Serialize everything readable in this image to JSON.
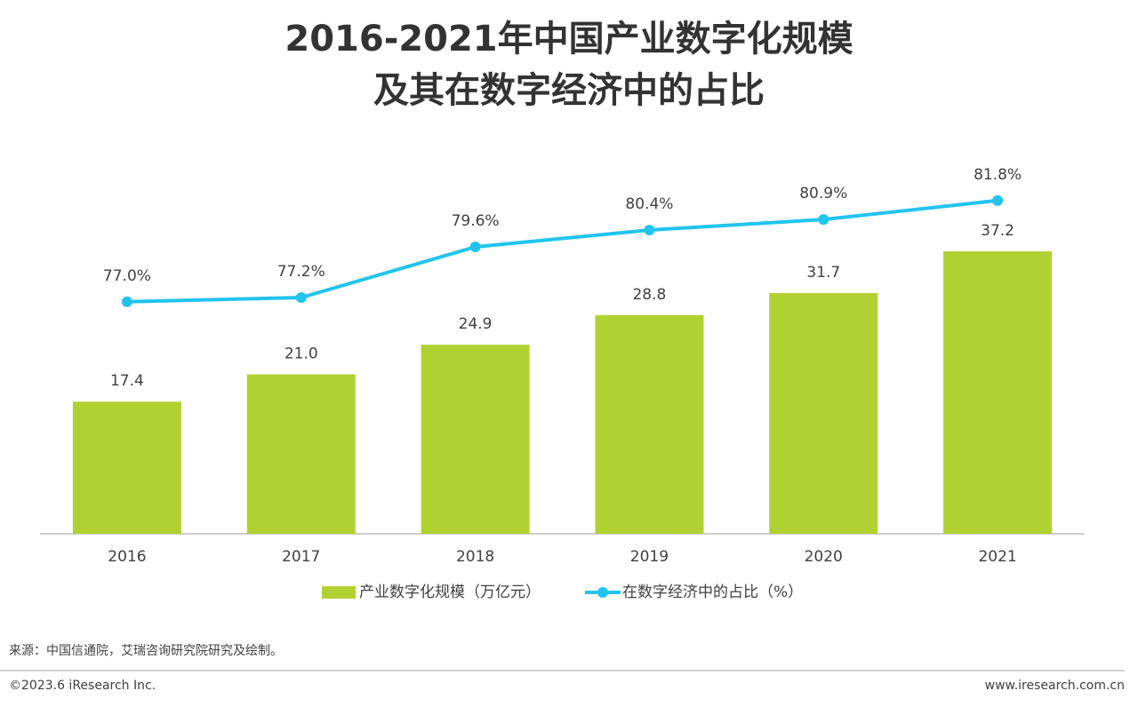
{
  "chart_data": {
    "type": "bar-line",
    "title": [
      "2016-2021年中国产业数字化规模",
      "及其在数字经济中的占比"
    ],
    "categories": [
      "2016",
      "2017",
      "2018",
      "2019",
      "2020",
      "2021"
    ],
    "series": [
      {
        "name": "产业数字化规模（万亿元）",
        "type": "bar",
        "color": "#b1d132",
        "values": [
          17.4,
          21.0,
          24.9,
          28.8,
          31.7,
          37.2
        ],
        "value_labels": [
          "17.4",
          "21.0",
          "24.9",
          "28.8",
          "31.7",
          "37.2"
        ]
      },
      {
        "name": "在数字经济中的占比（%）",
        "type": "line",
        "axis": "y2",
        "color": "#22c4ee",
        "values": [
          77.0,
          77.2,
          79.6,
          80.4,
          80.9,
          81.8
        ],
        "value_labels": [
          "77.0%",
          "77.2%",
          "79.6%",
          "80.4%",
          "80.9%",
          "81.8%"
        ]
      }
    ],
    "ylim": [
      0,
      50
    ],
    "y2lim": [
      66,
      84
    ],
    "legend": "bottom"
  },
  "source": "来源：中国信通院，艾瑞咨询研究院研究及绘制。",
  "copyright": "©2023.6 iResearch Inc.",
  "website": "www.iresearch.com.cn"
}
